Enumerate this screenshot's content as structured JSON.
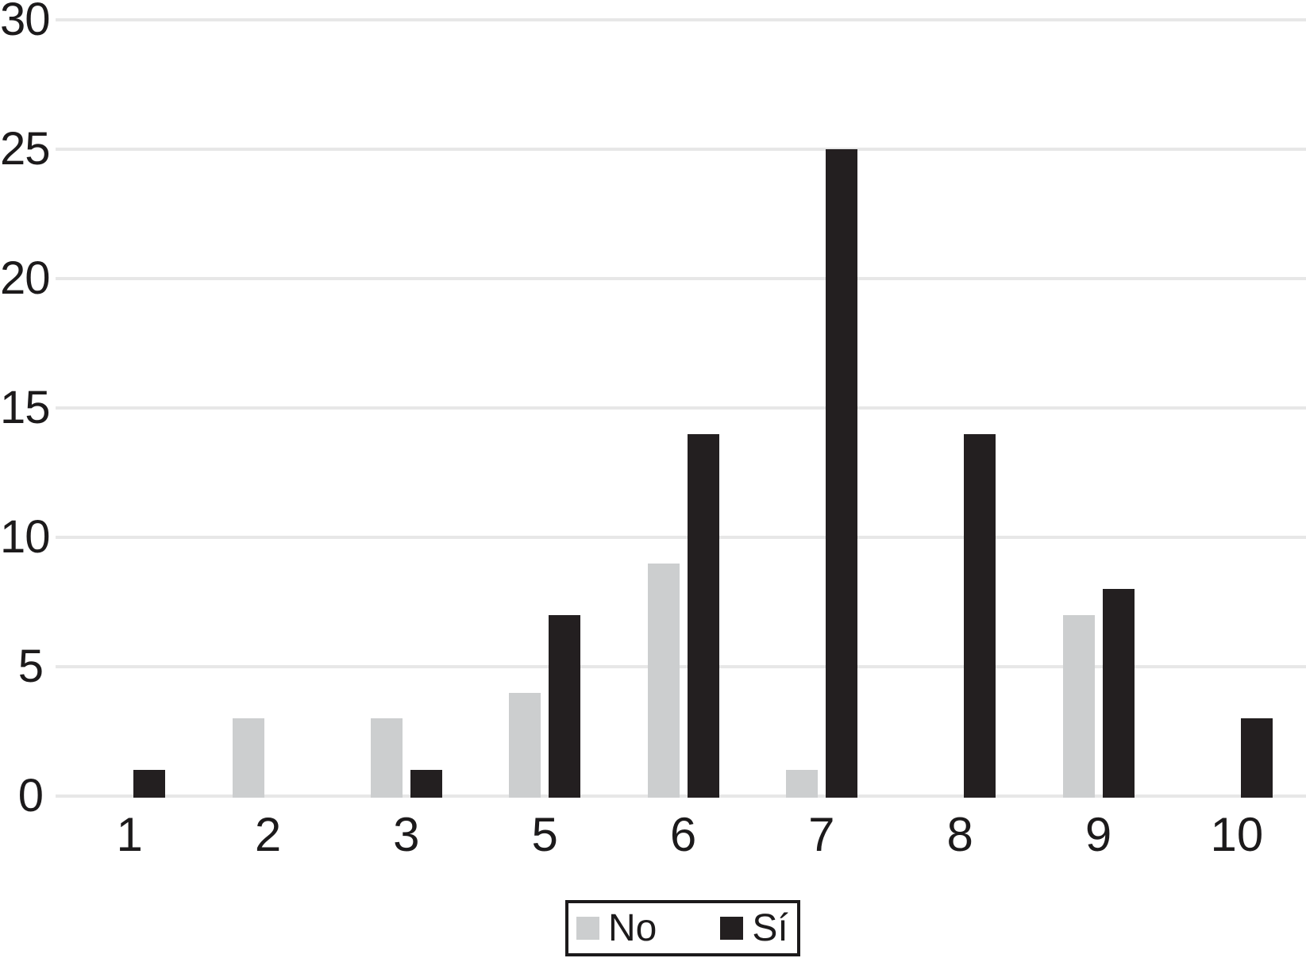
{
  "chart_data": {
    "type": "bar",
    "title": "",
    "xlabel": "",
    "ylabel": "",
    "categories": [
      "1",
      "2",
      "3",
      "5",
      "6",
      "7",
      "8",
      "9",
      "10"
    ],
    "series": [
      {
        "name": "No",
        "color": "#cccecf",
        "values": [
          0,
          3,
          3,
          4,
          9,
          1,
          0,
          7,
          0
        ]
      },
      {
        "name": "Sí",
        "color": "#231f20",
        "values": [
          1,
          0,
          1,
          7,
          14,
          25,
          14,
          8,
          3
        ]
      }
    ],
    "ylim": [
      0,
      30
    ],
    "yticks": [
      0,
      5,
      10,
      15,
      20,
      25,
      30
    ],
    "grid": true,
    "gridline_color": "#e7e7e7",
    "text_color": "#1c1a1b",
    "legend_position": "bottom",
    "legend_border_color": "#1c1a1b"
  }
}
